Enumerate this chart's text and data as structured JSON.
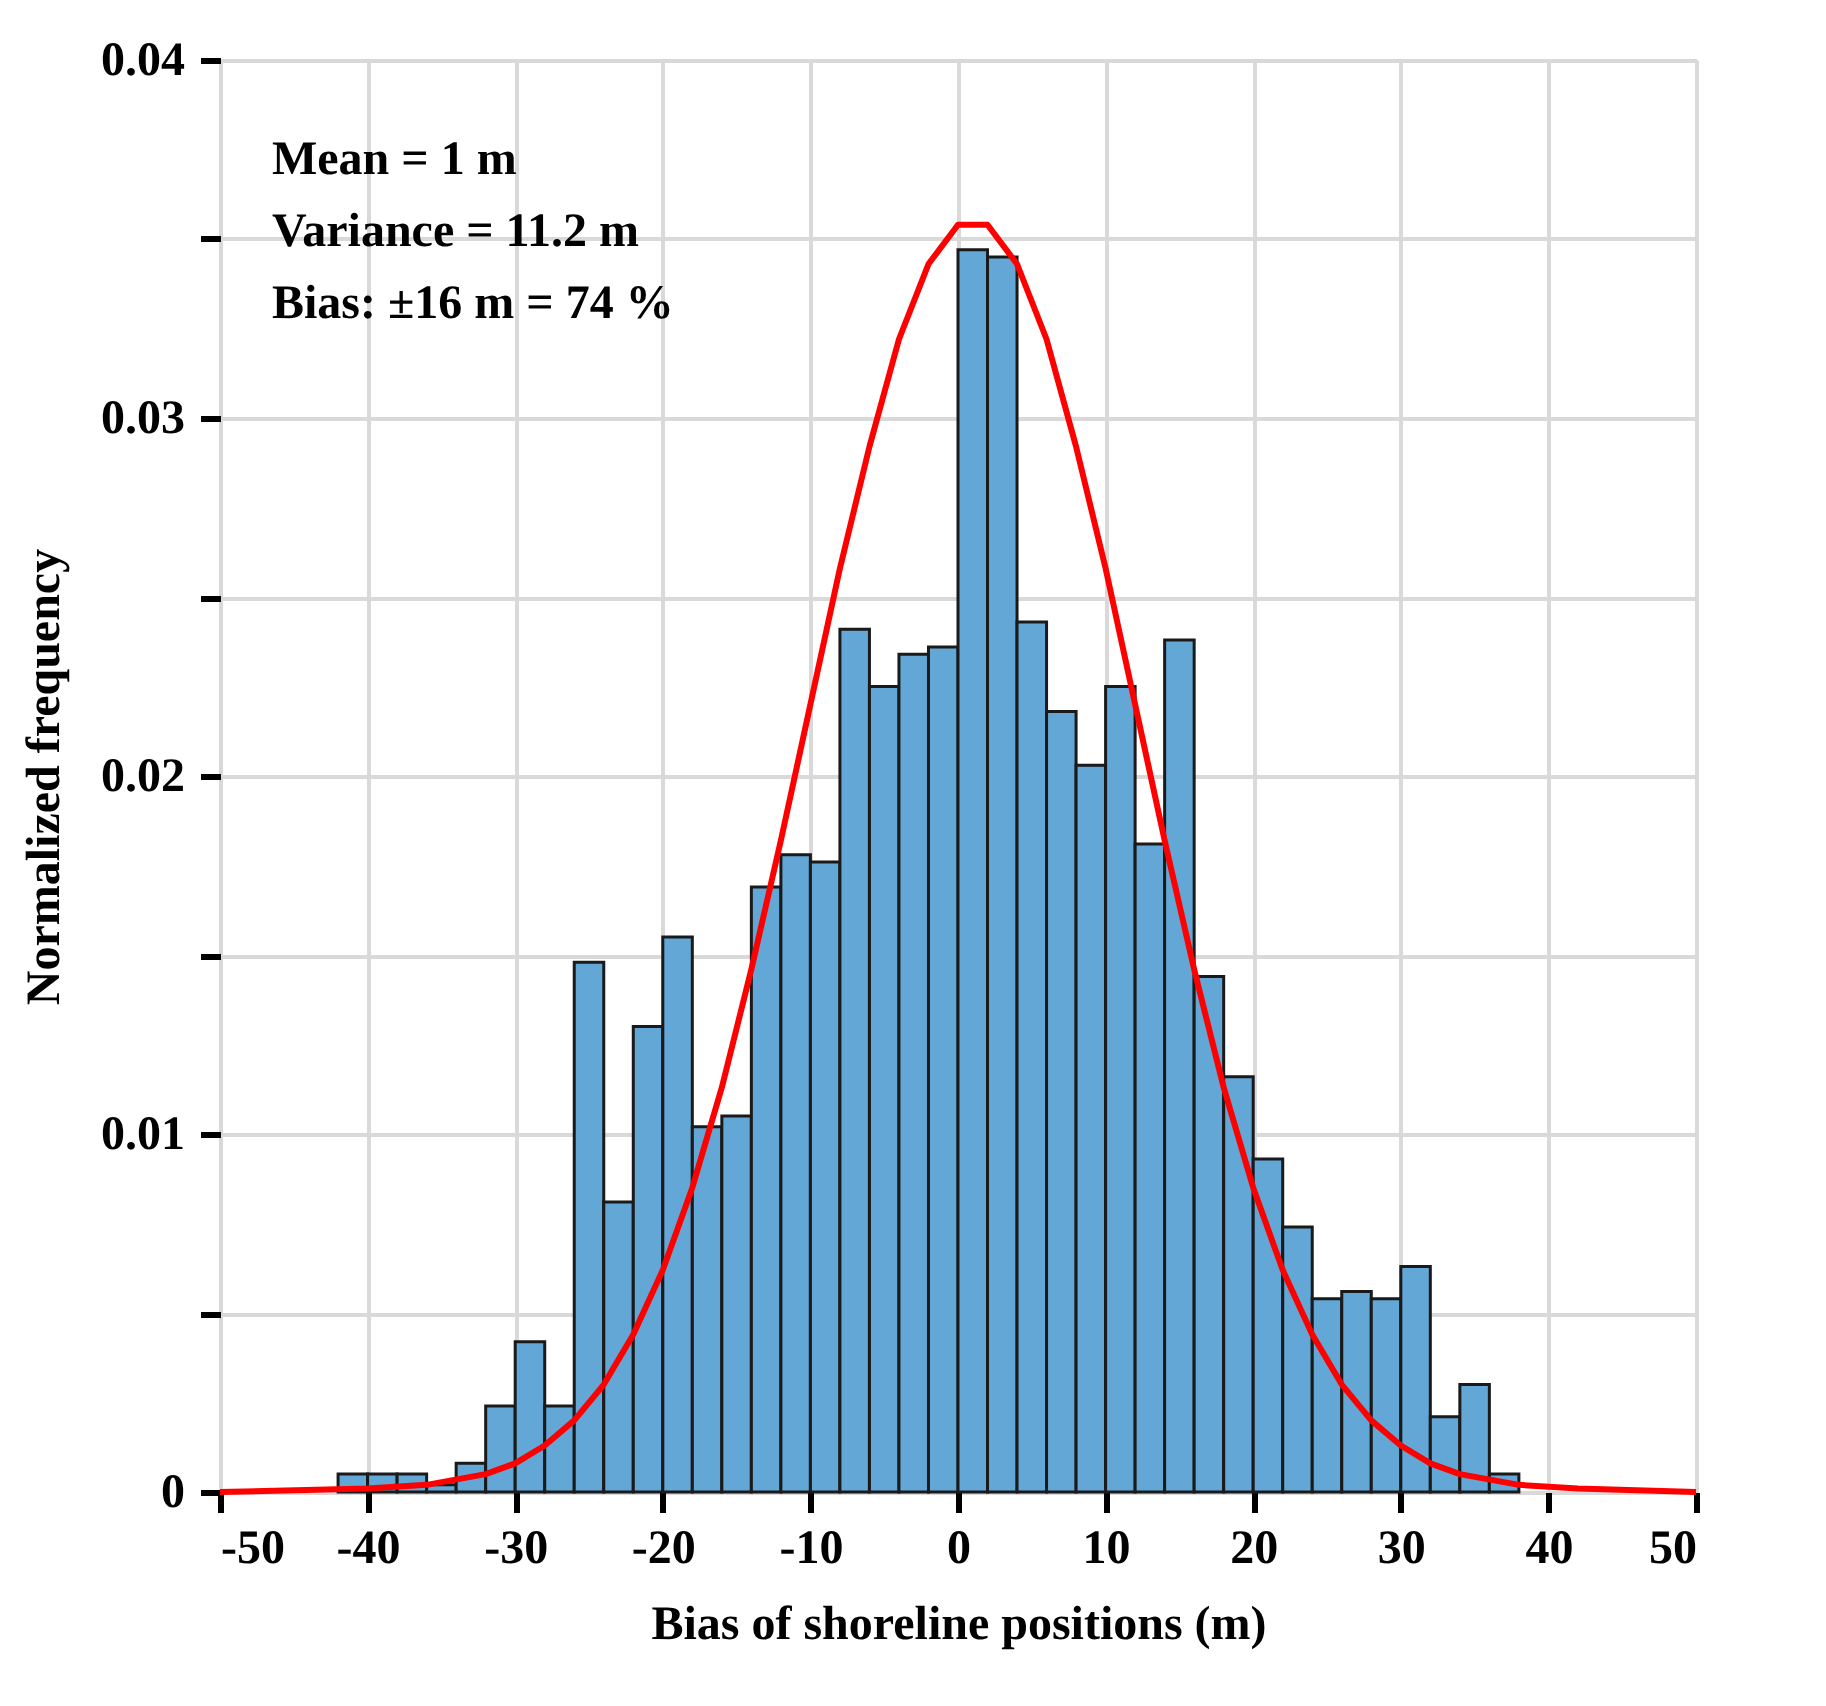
{
  "chart_data": {
    "type": "histogram",
    "xlabel": "Bias of  shoreline positions (m)",
    "ylabel": "Normalized  frequency",
    "annotations": [
      "Mean = 1 m",
      "Variance = 11.2 m",
      "Bias: ±16 m = 74 %"
    ],
    "bins": [
      -42,
      -40,
      -38,
      -36,
      -34,
      -32,
      -30,
      -28,
      -26,
      -24,
      -22,
      -20,
      -18,
      -16,
      -14,
      -12,
      -10,
      -8,
      -6,
      -4,
      -2,
      0,
      2,
      4,
      6,
      8,
      10,
      12,
      14,
      16,
      18,
      20,
      22,
      24,
      26,
      28,
      30,
      32,
      34,
      36,
      38
    ],
    "values": [
      0.0005,
      0.0005,
      0.0005,
      0.0002,
      0.0008,
      0.0024,
      0.0042,
      0.0024,
      0.0148,
      0.0081,
      0.013,
      0.0155,
      0.0102,
      0.0105,
      0.0169,
      0.0178,
      0.0176,
      0.0241,
      0.0225,
      0.0234,
      0.0236,
      0.0347,
      0.0345,
      0.0243,
      0.0218,
      0.0203,
      0.0225,
      0.0181,
      0.0238,
      0.0144,
      0.0116,
      0.0093,
      0.0074,
      0.0054,
      0.0056,
      0.0054,
      0.0063,
      0.0021,
      0.003,
      0.0005
    ],
    "color": "#62a7d6",
    "series": [
      {
        "type": "line",
        "color": "#ff0000",
        "x": [
          -50,
          -40,
          -36,
          -32,
          -30,
          -28,
          -26,
          -24,
          -22,
          -20,
          -18,
          -16,
          -14,
          -12,
          -10,
          -8,
          -6,
          -4,
          -2,
          0,
          2,
          4,
          6,
          8,
          10,
          12,
          14,
          16,
          18,
          20,
          22,
          24,
          26,
          28,
          30,
          32,
          34,
          38,
          42,
          50
        ],
        "values": [
          0.0,
          0.0001,
          0.0002,
          0.0005,
          0.0008,
          0.0013,
          0.002,
          0.003,
          0.0044,
          0.0062,
          0.0085,
          0.0113,
          0.0146,
          0.0182,
          0.022,
          0.0258,
          0.0292,
          0.0322,
          0.0343,
          0.0354,
          0.0354,
          0.0343,
          0.0322,
          0.0292,
          0.0258,
          0.022,
          0.0182,
          0.0146,
          0.0113,
          0.0085,
          0.0062,
          0.0044,
          0.003,
          0.002,
          0.0013,
          0.0008,
          0.0005,
          0.0002,
          0.0001,
          0.0
        ]
      }
    ],
    "xlim": [
      -50,
      50
    ],
    "xticks": [
      -50,
      -40,
      -30,
      -20,
      -10,
      0,
      10,
      20,
      30,
      40,
      50
    ],
    "ylim": [
      0,
      0.04
    ],
    "yticks": [
      0,
      {
        "value": 0.005,
        "label": null
      },
      0.01,
      {
        "value": 0.015,
        "label": null
      },
      0.02,
      {
        "value": 0.025,
        "label": null
      },
      0.03,
      {
        "value": 0.035,
        "label": null
      },
      0.04
    ],
    "grid": true
  }
}
